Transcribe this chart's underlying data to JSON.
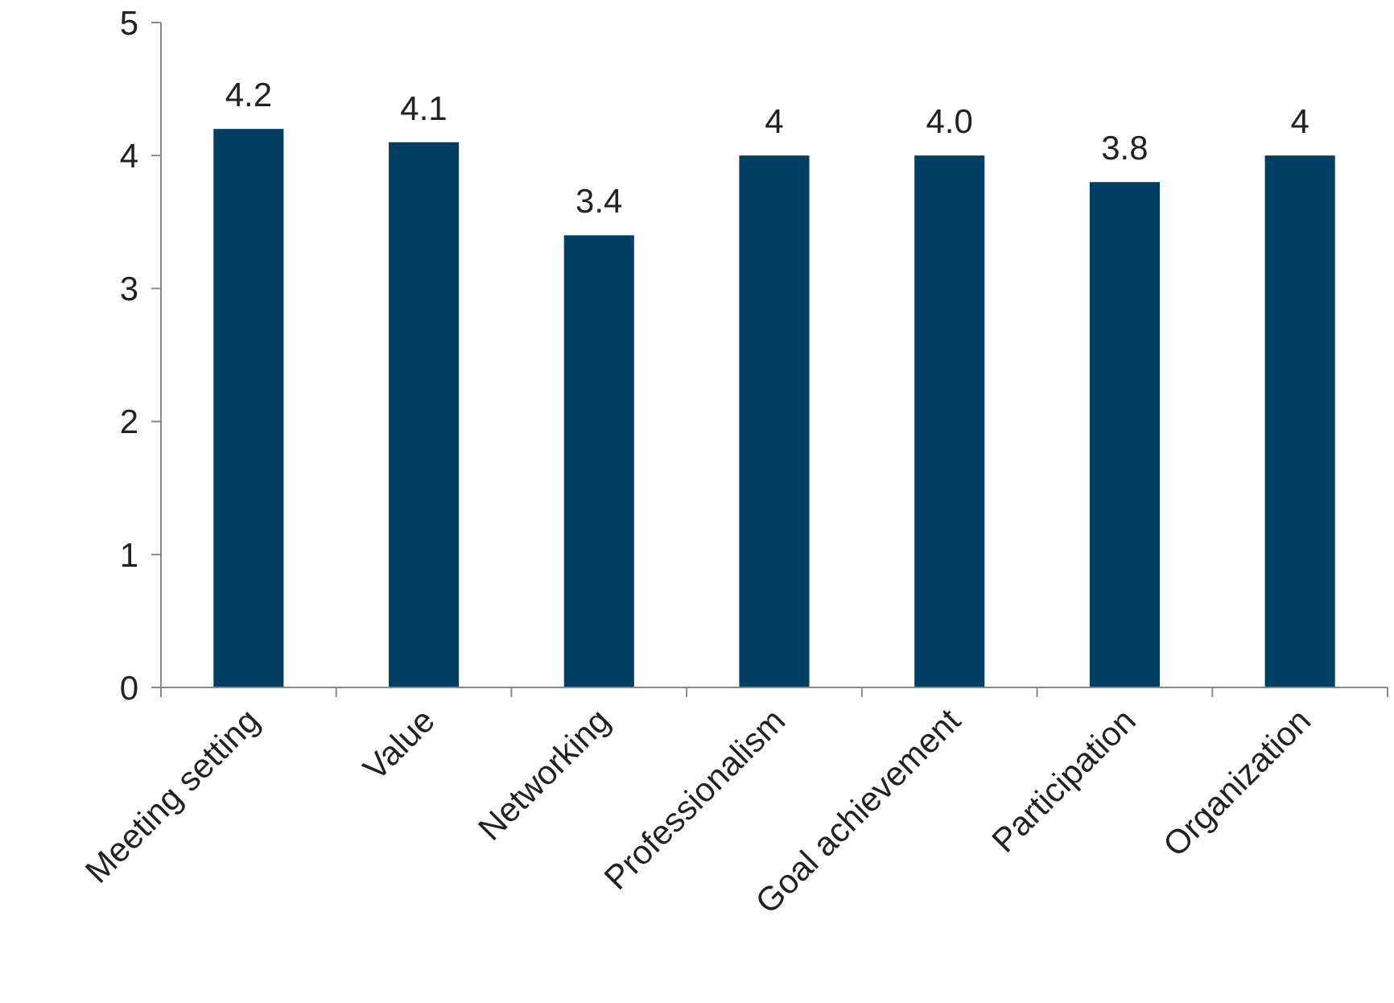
{
  "chart_data": {
    "type": "bar",
    "categories": [
      "Meeting setting",
      "Value",
      "Networking",
      "Professionalism",
      "Goal achievement",
      "Participation",
      "Organization"
    ],
    "values": [
      4.2,
      4.1,
      3.4,
      4.0,
      4.0,
      3.8,
      4.0
    ],
    "value_labels": [
      "4.2",
      "4.1",
      "3.4",
      "4",
      "4.0",
      "3.8",
      "4"
    ],
    "color": "#003f63",
    "ylim": [
      0,
      5
    ],
    "yticks": [
      0,
      1,
      2,
      3,
      4,
      5
    ],
    "grid": false
  }
}
